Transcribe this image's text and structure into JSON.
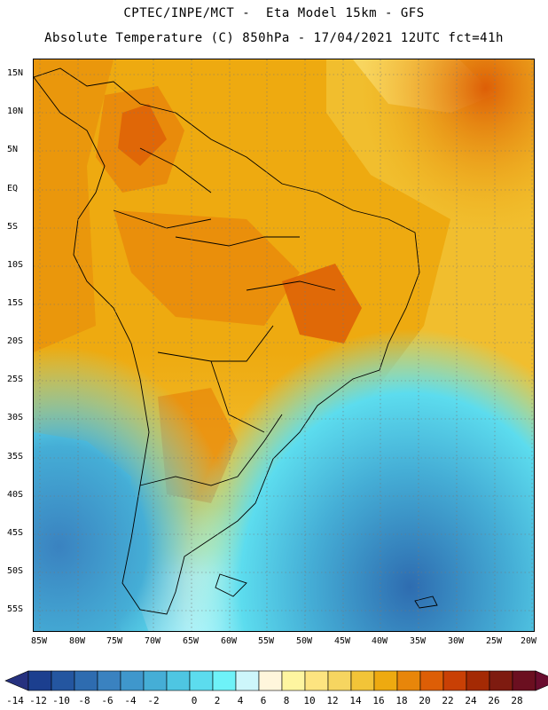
{
  "header": {
    "title_line1": "CPTEC/INPE/MCT -  Eta Model 15km - GFS",
    "title_line2": "Absolute Temperature (C) 850hPa - 17/04/2021 12UTC fct=41h"
  },
  "map": {
    "lat_labels": [
      "15N",
      "10N",
      "5N",
      "EQ",
      "5S",
      "10S",
      "15S",
      "20S",
      "25S",
      "30S",
      "35S",
      "40S",
      "45S",
      "50S",
      "55S"
    ],
    "lon_labels": [
      "85W",
      "80W",
      "75W",
      "70W",
      "65W",
      "60W",
      "55W",
      "50W",
      "45W",
      "40W",
      "35W",
      "30W",
      "25W",
      "20W"
    ]
  },
  "colorbar": {
    "labels": [
      "-14",
      "-12",
      "-10",
      "-8",
      "-6",
      "-4",
      "-2",
      "0",
      "2",
      "4",
      "6",
      "8",
      "10",
      "12",
      "14",
      "16",
      "18",
      "20",
      "22",
      "24",
      "26",
      "28"
    ],
    "colors": [
      "#1c3f8f",
      "#2456a0",
      "#2e6cb0",
      "#3a82c0",
      "#3f97cc",
      "#45aed6",
      "#4ec6e2",
      "#5cdcee",
      "#6ef2f8",
      "#cdf6fb",
      "#fff6dc",
      "#fef5a0",
      "#fde480",
      "#f6d560",
      "#f2c438",
      "#eeaa10",
      "#e8860a",
      "#dd5e06",
      "#c94005",
      "#a42a04",
      "#7e1b10",
      "#6b0f20"
    ],
    "under_color": "#26317f",
    "over_color": "#6a0c2e"
  }
}
